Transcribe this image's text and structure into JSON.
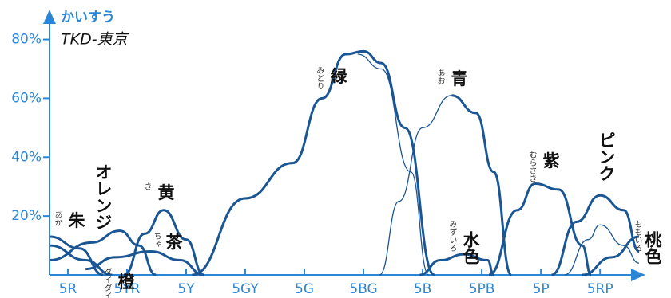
{
  "chart_data": {
    "type": "line",
    "title": "TKD-東京",
    "y_label": "かいすう",
    "xlim": [
      -0.31,
      9.66
    ],
    "ylim": [
      0,
      88
    ],
    "xticks": [
      {
        "value": 0,
        "label": "5R"
      },
      {
        "value": 1,
        "label": "5YR"
      },
      {
        "value": 2,
        "label": "5Y"
      },
      {
        "value": 3,
        "label": "5GY"
      },
      {
        "value": 4,
        "label": "5G"
      },
      {
        "value": 5,
        "label": "5BG"
      },
      {
        "value": 6,
        "label": "5B"
      },
      {
        "value": 7,
        "label": "5PB"
      },
      {
        "value": 8,
        "label": "5P"
      },
      {
        "value": 9,
        "label": "5RP"
      }
    ],
    "yticks": [
      {
        "value": 20,
        "label": "20%"
      },
      {
        "value": 40,
        "label": "40%"
      },
      {
        "value": 60,
        "label": "60%"
      },
      {
        "value": 80,
        "label": "80%"
      }
    ],
    "color": "#1a5594",
    "series": [
      {
        "name": "朱",
        "reading": "あか",
        "x": [
          -0.31,
          0.2,
          0.6
        ],
        "values": [
          13,
          9,
          0
        ]
      },
      {
        "name": "オレンジ",
        "x": [
          -0.31,
          0.4,
          0.88,
          1.2,
          1.49
        ],
        "values": [
          5,
          11,
          15,
          10,
          0
        ]
      },
      {
        "name": "黄",
        "reading": "き",
        "x": [
          0.95,
          1.3,
          1.62,
          2.0,
          2.3
        ],
        "values": [
          0,
          14,
          22,
          12,
          0
        ]
      },
      {
        "name": "茶",
        "reading": "ちゃ",
        "x": [
          0.3,
          0.8,
          1.4,
          1.9,
          2.3
        ],
        "values": [
          2,
          6,
          8,
          5,
          0
        ]
      },
      {
        "name": "橙",
        "reading": "ダイダイ",
        "x": [
          -0.31,
          0.3,
          0.75
        ],
        "values": [
          10,
          5,
          0
        ]
      },
      {
        "name": "緑",
        "reading": "みどり",
        "x": [
          2.1,
          3.0,
          3.8,
          4.3,
          4.7,
          5.0,
          5.3,
          5.7,
          6.2
        ],
        "values": [
          0,
          26,
          38,
          60,
          75,
          76,
          72,
          50,
          0
        ]
      },
      {
        "x": [
          4.9,
          5.3,
          5.8,
          6.1
        ],
        "values": [
          75,
          70,
          35,
          0
        ],
        "thin": true
      },
      {
        "x": [
          5.27,
          5.6,
          6.0,
          6.49
        ],
        "values": [
          0,
          25,
          50,
          61
        ],
        "thin": true
      },
      {
        "name": "青",
        "reading": "あお",
        "x": [
          6.49,
          6.9,
          7.2,
          7.5
        ],
        "values": [
          61,
          55,
          35,
          0
        ]
      },
      {
        "name": "水色",
        "reading": "みずいろ",
        "x": [
          5.95,
          6.3,
          6.7,
          7.1,
          7.2
        ],
        "values": [
          0,
          5,
          7,
          5,
          0
        ]
      },
      {
        "name": "紫",
        "reading": "むらさき",
        "x": [
          7.12,
          7.6,
          7.9,
          8.3,
          8.7,
          8.85
        ],
        "values": [
          0,
          22,
          31,
          29,
          10,
          0
        ]
      },
      {
        "name": "ピンク",
        "x": [
          8.18,
          8.6,
          9.0,
          9.4,
          9.66
        ],
        "values": [
          0,
          18,
          27,
          22,
          8
        ]
      },
      {
        "x": [
          8.4,
          8.8,
          9.0,
          9.4,
          9.66
        ],
        "values": [
          0,
          12,
          17,
          10,
          4
        ],
        "thin": true
      },
      {
        "name": "桃色",
        "reading": "ももいろ",
        "x": [
          8.7,
          9.2,
          9.66
        ],
        "values": [
          0,
          6,
          13
        ]
      }
    ]
  }
}
